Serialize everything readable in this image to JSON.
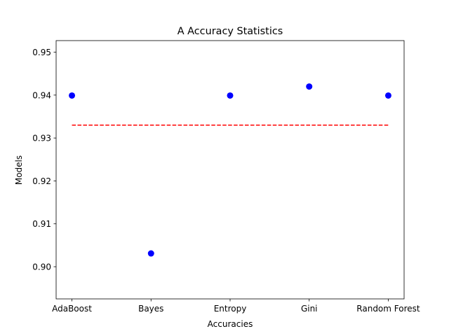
{
  "chart_data": {
    "type": "scatter",
    "title": "A Accuracy Statistics",
    "xlabel": "Accuracies",
    "ylabel": "Models",
    "categories": [
      "AdaBoost",
      "Bayes",
      "Entropy",
      "Gini",
      "Random Forest"
    ],
    "series": [
      {
        "kind": "scatter",
        "values": [
          0.9399,
          0.9031,
          0.9399,
          0.942,
          0.9399
        ],
        "color": "#0000ff"
      },
      {
        "kind": "line",
        "style": "dashed",
        "values": [
          0.933,
          0.933,
          0.933,
          0.933,
          0.933
        ],
        "color": "#ff0000"
      }
    ],
    "ylim": [
      0.8925,
      0.9527
    ],
    "yticks": [
      0.9,
      0.91,
      0.92,
      0.93,
      0.94,
      0.95
    ],
    "ytick_labels": [
      "0.90",
      "0.91",
      "0.92",
      "0.93",
      "0.94",
      "0.95"
    ],
    "grid": false,
    "legend": "none"
  }
}
